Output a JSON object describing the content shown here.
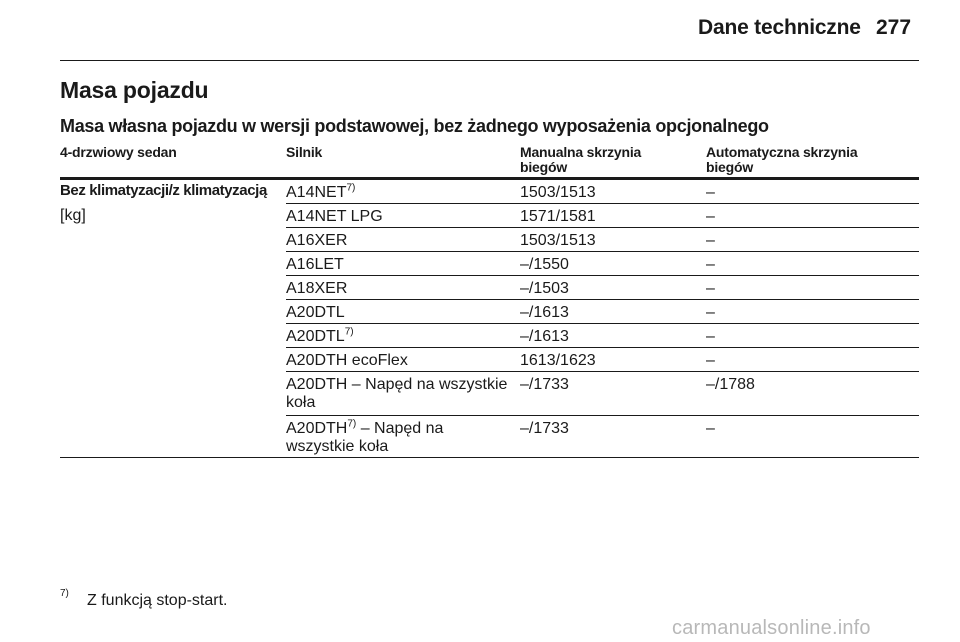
{
  "header": {
    "title": "Dane techniczne",
    "page_number": "277"
  },
  "section_title": "Masa pojazdu",
  "subtitle": "Masa własna pojazdu w wersji podstawowej, bez żadnego wyposażenia opcjonalnego",
  "table": {
    "columns": [
      "4-drzwiowy sedan",
      "Silnik",
      "Manualna skrzynia biegów",
      "Automatyczna skrzynia biegów"
    ],
    "row_label": "Bez klimatyzacji/z klimatyzacją",
    "unit": "[kg]",
    "rows": [
      {
        "engine": "A14NET",
        "footnote": "7)",
        "engine_suffix": "",
        "manual": "1503/1513",
        "auto": "–"
      },
      {
        "engine": "A14NET LPG",
        "footnote": "",
        "engine_suffix": "",
        "manual": "1571/1581",
        "auto": "–"
      },
      {
        "engine": "A16XER",
        "footnote": "",
        "engine_suffix": "",
        "manual": "1503/1513",
        "auto": "–"
      },
      {
        "engine": "A16LET",
        "footnote": "",
        "engine_suffix": "",
        "manual": "–/1550",
        "auto": "–"
      },
      {
        "engine": "A18XER",
        "footnote": "",
        "engine_suffix": "",
        "manual": "–/1503",
        "auto": "–"
      },
      {
        "engine": "A20DTL",
        "footnote": "",
        "engine_suffix": "",
        "manual": "–/1613",
        "auto": "–"
      },
      {
        "engine": "A20DTL",
        "footnote": "7)",
        "engine_suffix": "",
        "manual": "–/1613",
        "auto": "–"
      },
      {
        "engine": "A20DTH ecoFlex",
        "footnote": "",
        "engine_suffix": "",
        "manual": "1613/1623",
        "auto": "–"
      },
      {
        "engine": "A20DTH – Napęd na wszystkie koła",
        "footnote": "",
        "engine_suffix": "",
        "manual": "–/1733",
        "auto": "–/1788"
      },
      {
        "engine": "A20DTH",
        "footnote": "7)",
        "engine_suffix": " – Napęd na wszystkie koła",
        "manual": "–/1733",
        "auto": "–"
      }
    ]
  },
  "footnote": {
    "mark": "7)",
    "text": "Z funkcją stop-start."
  },
  "watermark": "carmanualsonline.info"
}
